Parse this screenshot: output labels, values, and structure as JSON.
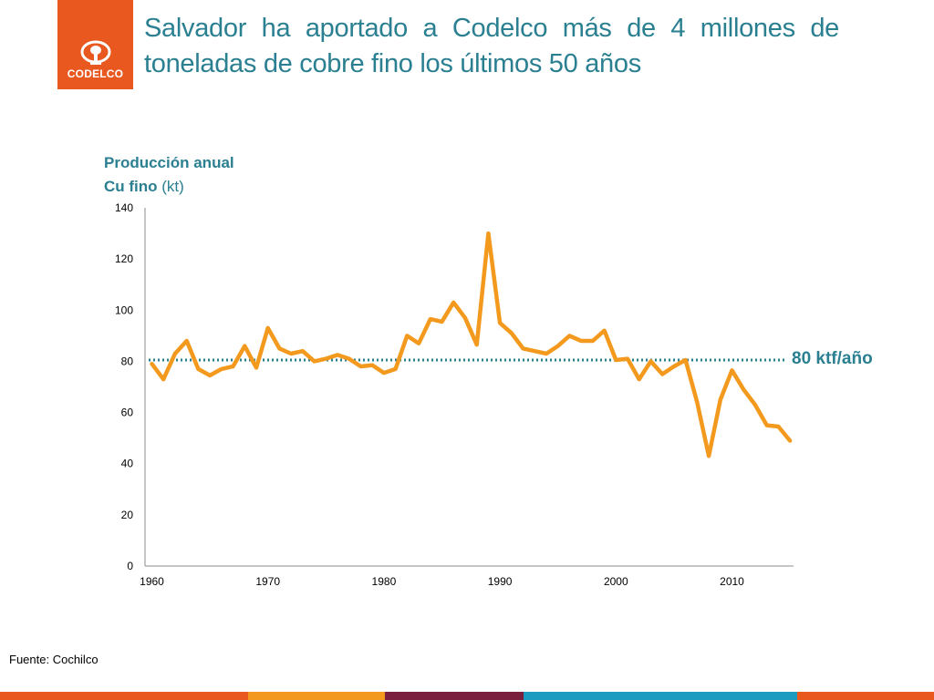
{
  "header": {
    "logo_text": "CODELCO",
    "title": "Salvador ha aportado a Codelco más de 4 millones de toneladas de cobre fino los últimos 50 años"
  },
  "ylabel": {
    "line1": "Producción anual",
    "line2_bold": "Cu fino",
    "line2_unit": " (kt)"
  },
  "reference_label": "80 ktf/año",
  "source": "Fuente: Cochilco",
  "colors": {
    "accent_teal": "#2a7f91",
    "series_orange": "#f39a1e",
    "logo_orange": "#e8581f",
    "footer": [
      "#e8581f",
      "#f39a1e",
      "#7a1f3d",
      "#1a9bbf",
      "#e8581f"
    ]
  },
  "chart_data": {
    "type": "line",
    "xlim": [
      1959,
      2016
    ],
    "ylim": [
      0,
      140
    ],
    "xticks": [
      1960,
      1970,
      1980,
      1990,
      2000,
      2010
    ],
    "yticks": [
      0,
      20,
      40,
      60,
      80,
      100,
      120,
      140
    ],
    "reference_line": 80.5,
    "series": [
      {
        "x": [
          1960,
          1961,
          1962,
          1963,
          1964,
          1965,
          1966,
          1967,
          1968,
          1969,
          1970,
          1971,
          1972,
          1973,
          1974,
          1975,
          1976,
          1977,
          1978,
          1979,
          1980,
          1981,
          1982,
          1983,
          1984,
          1985,
          1986,
          1987,
          1988,
          1989,
          1990,
          1991,
          1992,
          1993,
          1994,
          1995,
          1996,
          1997,
          1998,
          1999,
          2000,
          2001,
          2002,
          2003,
          2004,
          2005,
          2006,
          2007,
          2008,
          2009,
          2010,
          2011,
          2012,
          2013,
          2014,
          2015
        ],
        "values": [
          79,
          73,
          83,
          88,
          77,
          74.5,
          77,
          78,
          86,
          77.5,
          93,
          85,
          83,
          84,
          80,
          81,
          82.5,
          81,
          78,
          78.5,
          75.5,
          77,
          90,
          87,
          96.5,
          95.5,
          103,
          97,
          86.5,
          130,
          95,
          91,
          85,
          84,
          83,
          86,
          90,
          88,
          88,
          92,
          80.5,
          81,
          73,
          80,
          75,
          78,
          80.5,
          64,
          43,
          65,
          76.5,
          69,
          63,
          55,
          54.5,
          49
        ]
      }
    ]
  }
}
